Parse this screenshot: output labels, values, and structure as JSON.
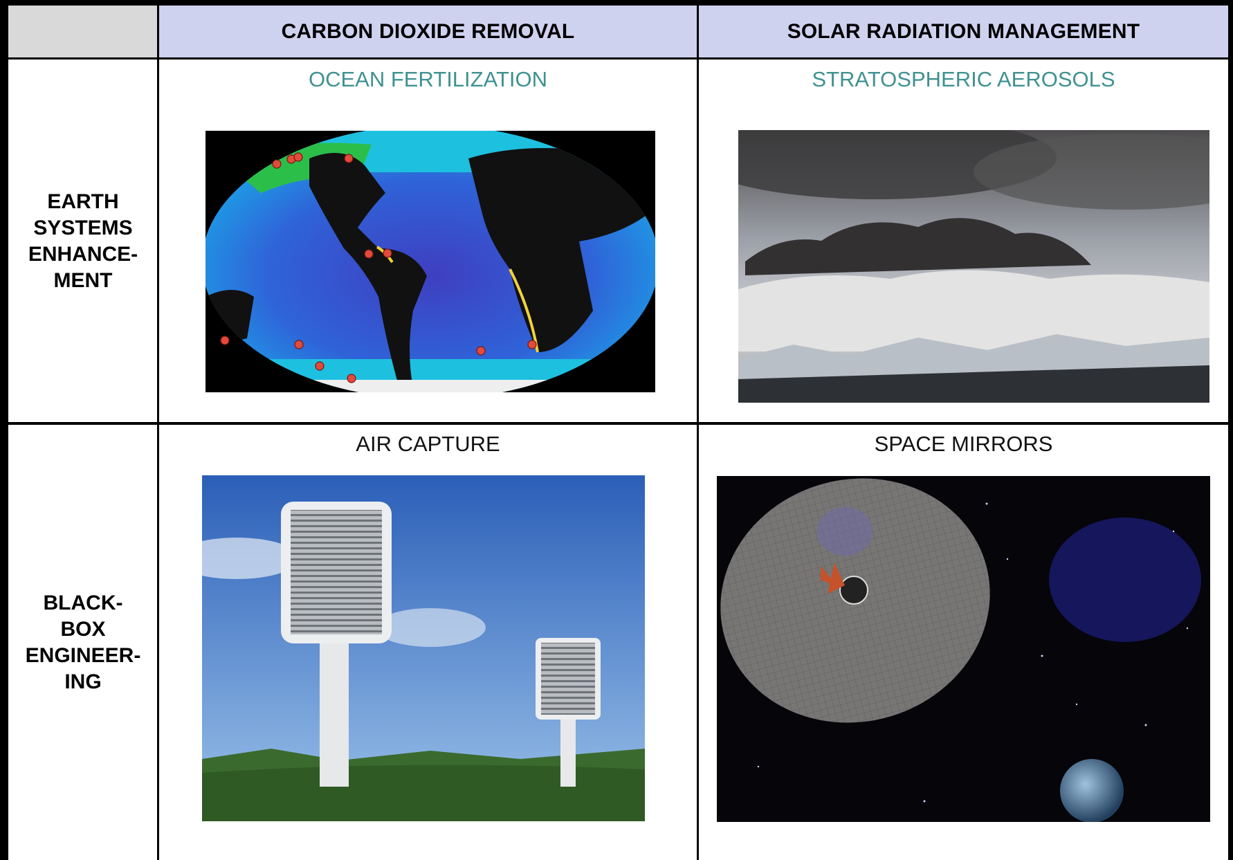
{
  "header": {
    "col1": "CARBON DIOXIDE REMOVAL",
    "col2": "SOLAR RADIATION MANAGEMENT"
  },
  "rows": [
    {
      "label": "EARTH\nSYSTEMS\nENHANCE-\nMENT",
      "cells": [
        {
          "title": "OCEAN FERTILIZATION",
          "title_color": "#3f9190"
        },
        {
          "title": "STRATOSPHERIC AEROSOLS",
          "title_color": "#3f9190"
        }
      ]
    },
    {
      "label": "BLACK-\nBOX\nENGINEER-\nING",
      "cells": [
        {
          "title": "AIR CAPTURE",
          "title_color": "#111111"
        },
        {
          "title": "SPACE MIRRORS",
          "title_color": "#111111"
        }
      ]
    }
  ],
  "colors": {
    "header_bg": "#cfd2ef",
    "border": "#000000",
    "accent_teal": "#3f9190"
  }
}
